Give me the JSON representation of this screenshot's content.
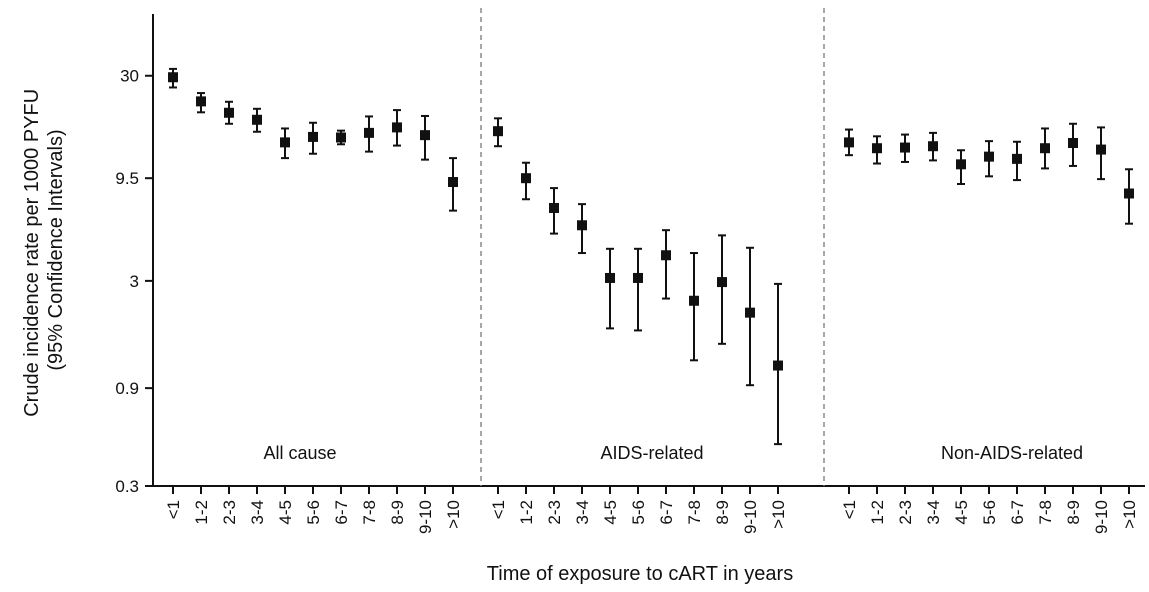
{
  "chart_data": {
    "type": "scatter",
    "xlabel": "Time of exposure to cART in years",
    "ylabel_lines": [
      "Crude incidence rate per 1000 PYFU",
      "(95% Confidence Intervals)"
    ],
    "y_scale": "log",
    "ylim": [
      0.3,
      60
    ],
    "y_ticks": [
      {
        "value": 0.3,
        "label": "0.3"
      },
      {
        "value": 0.9,
        "label": "0.9"
      },
      {
        "value": 3,
        "label": "3"
      },
      {
        "value": 9.5,
        "label": "9.5"
      },
      {
        "value": 30,
        "label": "30"
      }
    ],
    "panels": [
      {
        "label": "All cause",
        "categories": [
          "<1",
          "1-2",
          "2-3",
          "3-4",
          "4-5",
          "5-6",
          "6-7",
          "7-8",
          "8-9",
          "9-10",
          ">10"
        ],
        "estimates": [
          29.5,
          22.5,
          19.8,
          18.3,
          14.2,
          15.1,
          15.0,
          15.8,
          16.8,
          15.4,
          9.1
        ],
        "lower": [
          26.3,
          19.9,
          17.5,
          16.0,
          11.9,
          12.5,
          13.9,
          12.8,
          13.7,
          11.7,
          6.6
        ],
        "upper": [
          32.4,
          24.7,
          22.4,
          20.7,
          16.6,
          17.7,
          16.2,
          19.0,
          20.4,
          19.1,
          11.9
        ]
      },
      {
        "label": "AIDS-related",
        "categories": [
          "<1",
          "1-2",
          "2-3",
          "3-4",
          "4-5",
          "5-6",
          "6-7",
          "7-8",
          "8-9",
          "9-10",
          ">10"
        ],
        "estimates": [
          16.1,
          9.5,
          6.8,
          5.6,
          3.1,
          3.1,
          4.0,
          2.4,
          2.96,
          2.1,
          1.16
        ],
        "lower": [
          13.6,
          7.5,
          5.1,
          4.1,
          1.76,
          1.72,
          2.46,
          1.23,
          1.48,
          0.93,
          0.48
        ],
        "upper": [
          18.6,
          11.3,
          8.5,
          7.1,
          4.3,
          4.3,
          5.3,
          4.1,
          5.0,
          4.35,
          2.9
        ]
      },
      {
        "label": "Non-AIDS-related",
        "categories": [
          "<1",
          "1-2",
          "2-3",
          "3-4",
          "4-5",
          "5-6",
          "6-7",
          "7-8",
          "8-9",
          "9-10",
          ">10"
        ],
        "estimates": [
          14.2,
          13.3,
          13.4,
          13.6,
          11.1,
          12.1,
          11.8,
          13.3,
          14.1,
          13.1,
          8.0
        ],
        "lower": [
          12.3,
          11.2,
          11.4,
          11.6,
          8.9,
          9.7,
          9.3,
          10.6,
          10.9,
          9.4,
          5.7
        ],
        "upper": [
          16.4,
          15.2,
          15.5,
          15.8,
          13.0,
          14.4,
          14.3,
          16.6,
          17.5,
          16.8,
          10.5
        ]
      }
    ],
    "separators": "dashed"
  }
}
